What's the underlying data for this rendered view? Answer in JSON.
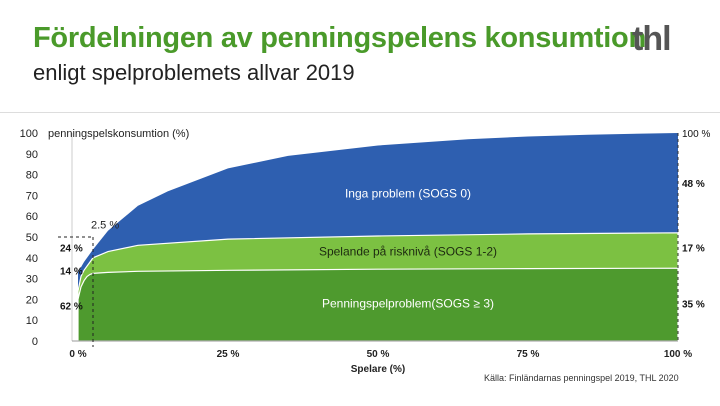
{
  "header": {
    "title": "Fördelningen av penningspelens konsumtion",
    "subtitle": "enligt spelproblemets allvar 2019",
    "logo_text": "thl"
  },
  "source": "Källa: Finländarnas penningspel 2019, THL 2020",
  "colors": {
    "title": "#4a9a2a",
    "no_problem": "#2e5fb0",
    "risk": "#7cc142",
    "problem": "#4e9a2e"
  },
  "chart_data": {
    "type": "area",
    "title": "",
    "ylabel": "penningspelskonsumtion (%)",
    "xlabel": "Spelare (%)",
    "xlim": [
      0,
      100
    ],
    "ylim": [
      0,
      100
    ],
    "yticks": [
      0,
      10,
      20,
      30,
      40,
      50,
      60,
      70,
      80,
      90,
      100
    ],
    "xticks": [
      0,
      25,
      50,
      75,
      100
    ],
    "xtick_labels": [
      "0 %",
      "25 %",
      "50 %",
      "75 %",
      "100 %"
    ],
    "marker": {
      "x": 2.5,
      "label": "2.5 %"
    },
    "series": [
      {
        "name": "Penningspelproblem(SOGS ≥ 3)",
        "x": [
          0,
          0.5,
          1,
          1.5,
          2,
          2.5,
          5,
          10,
          25,
          50,
          75,
          100
        ],
        "y": [
          20,
          26,
          29,
          31,
          32,
          32.5,
          33,
          33.5,
          34,
          34.5,
          34.8,
          35
        ]
      },
      {
        "name": "Spelande på risknivå  (SOGS 1-2)",
        "x": [
          0,
          0.5,
          1,
          1.5,
          2,
          2.5,
          5,
          10,
          25,
          50,
          75,
          100
        ],
        "y": [
          24,
          31,
          34,
          36,
          38,
          40,
          43,
          46,
          49,
          50.5,
          51.5,
          52
        ]
      },
      {
        "name": "Inga problem  (SOGS 0)",
        "x": [
          0,
          1,
          2.5,
          5,
          10,
          15,
          25,
          35,
          50,
          65,
          75,
          85,
          100
        ],
        "y": [
          33,
          38,
          44,
          53,
          65,
          72,
          83,
          89,
          94,
          97,
          98.3,
          99.2,
          100
        ]
      }
    ],
    "left_labels": [
      {
        "text": "62 %",
        "y": 17
      },
      {
        "text": "14 %",
        "y": 34
      },
      {
        "text": "24 %",
        "y": 45
      }
    ],
    "right_labels": [
      {
        "text": "35 %",
        "y": 18
      },
      {
        "text": "17 %",
        "y": 45
      },
      {
        "text": "48 %",
        "y": 76
      },
      {
        "text": "100 %",
        "y": 100
      }
    ],
    "region_labels": [
      {
        "text": "Penningspelproblem(SOGS ≥ 3)",
        "x": 55,
        "y": 18
      },
      {
        "text": "Spelande på risknivå  (SOGS 1-2)",
        "x": 55,
        "y": 43
      },
      {
        "text": "Inga problem  (SOGS 0)",
        "x": 55,
        "y": 71
      }
    ]
  }
}
